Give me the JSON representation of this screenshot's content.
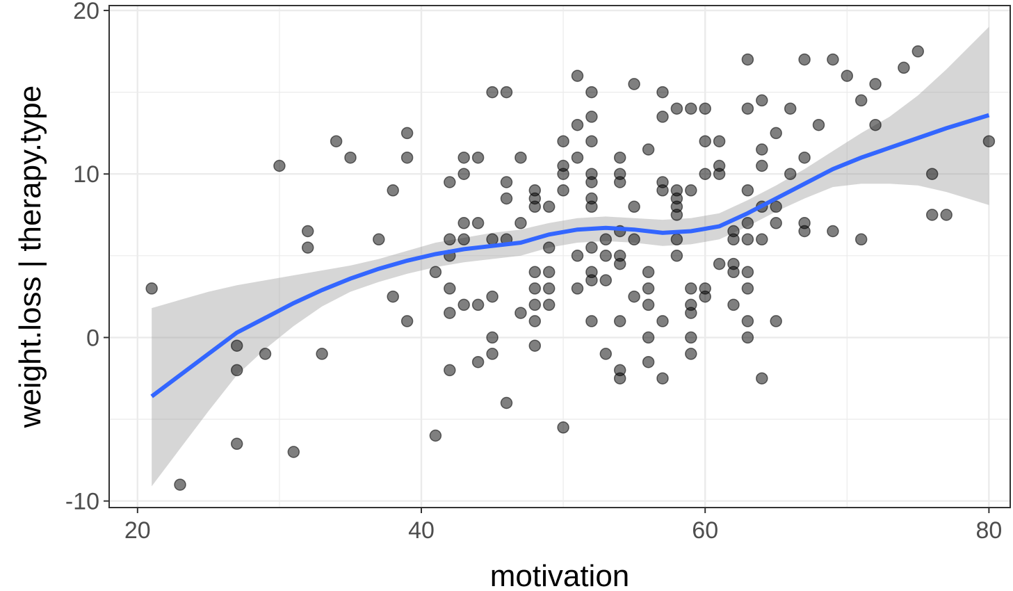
{
  "chart_data": {
    "type": "scatter",
    "xlabel": "motivation",
    "ylabel": "weight.loss | therapy.type",
    "xlim": [
      18,
      81.5
    ],
    "ylim": [
      -10.4,
      20.3
    ],
    "x_ticks": [
      20,
      40,
      60,
      80
    ],
    "x_tick_labels": [
      "20",
      "40",
      "60",
      "80"
    ],
    "y_ticks": [
      -10,
      0,
      10,
      20
    ],
    "y_tick_labels": [
      "-10",
      "0",
      "10",
      "20"
    ],
    "grid": true,
    "legend": "none",
    "colors": {
      "points": "#000000",
      "smooth_line": "#3366FF",
      "confidence_band": "#999999",
      "grid": "#ebebeb",
      "panel_border": "#333333"
    },
    "points": [
      [
        21,
        3
      ],
      [
        23,
        -9
      ],
      [
        27,
        -0.5
      ],
      [
        27,
        -2
      ],
      [
        27,
        -6.5
      ],
      [
        29,
        -1
      ],
      [
        30,
        10.5
      ],
      [
        31,
        -7
      ],
      [
        32,
        6.5
      ],
      [
        32,
        5.5
      ],
      [
        33,
        -1
      ],
      [
        34,
        12
      ],
      [
        35,
        11
      ],
      [
        37,
        6
      ],
      [
        38,
        9
      ],
      [
        38,
        2.5
      ],
      [
        39,
        12.5
      ],
      [
        39,
        11
      ],
      [
        39,
        1
      ],
      [
        41,
        4
      ],
      [
        41,
        -6
      ],
      [
        42,
        9.5
      ],
      [
        42,
        6
      ],
      [
        42,
        5
      ],
      [
        42,
        3
      ],
      [
        42,
        1.5
      ],
      [
        42,
        -2
      ],
      [
        43,
        11
      ],
      [
        43,
        10
      ],
      [
        43,
        7
      ],
      [
        43,
        6
      ],
      [
        43,
        2
      ],
      [
        44,
        11
      ],
      [
        44,
        7
      ],
      [
        44,
        2
      ],
      [
        44,
        -1.5
      ],
      [
        45,
        15
      ],
      [
        45,
        6
      ],
      [
        45,
        2.5
      ],
      [
        45,
        0
      ],
      [
        45,
        -1
      ],
      [
        46,
        15
      ],
      [
        46,
        9.5
      ],
      [
        46,
        8.5
      ],
      [
        46,
        6
      ],
      [
        46,
        -4
      ],
      [
        47,
        11
      ],
      [
        47,
        7
      ],
      [
        47,
        1.5
      ],
      [
        48,
        9
      ],
      [
        48,
        8.5
      ],
      [
        48,
        8
      ],
      [
        48,
        4
      ],
      [
        48,
        3
      ],
      [
        48,
        2
      ],
      [
        48,
        1
      ],
      [
        48,
        -0.5
      ],
      [
        49,
        8
      ],
      [
        49,
        5.5
      ],
      [
        49,
        4
      ],
      [
        49,
        3
      ],
      [
        49,
        2
      ],
      [
        50,
        12
      ],
      [
        50,
        10.5
      ],
      [
        50,
        10
      ],
      [
        50,
        9
      ],
      [
        50,
        -5.5
      ],
      [
        51,
        16
      ],
      [
        51,
        13
      ],
      [
        51,
        11
      ],
      [
        51,
        5
      ],
      [
        51,
        3
      ],
      [
        52,
        15
      ],
      [
        52,
        13.5
      ],
      [
        52,
        12
      ],
      [
        52,
        10
      ],
      [
        52,
        9.5
      ],
      [
        52,
        8.5
      ],
      [
        52,
        8
      ],
      [
        52,
        5.5
      ],
      [
        52,
        4
      ],
      [
        52,
        3.5
      ],
      [
        52,
        1
      ],
      [
        53,
        6
      ],
      [
        53,
        5
      ],
      [
        53,
        3.5
      ],
      [
        53,
        -1
      ],
      [
        54,
        11
      ],
      [
        54,
        10
      ],
      [
        54,
        9.5
      ],
      [
        54,
        6.5
      ],
      [
        54,
        5
      ],
      [
        54,
        4.5
      ],
      [
        54,
        1
      ],
      [
        54,
        -2
      ],
      [
        54,
        -2.5
      ],
      [
        55,
        15.5
      ],
      [
        55,
        8
      ],
      [
        55,
        6
      ],
      [
        55,
        2.5
      ],
      [
        56,
        11.5
      ],
      [
        56,
        4
      ],
      [
        56,
        3
      ],
      [
        56,
        2
      ],
      [
        56,
        0
      ],
      [
        56,
        -1.5
      ],
      [
        57,
        15
      ],
      [
        57,
        13.5
      ],
      [
        57,
        9.5
      ],
      [
        57,
        9
      ],
      [
        57,
        1
      ],
      [
        57,
        -2.5
      ],
      [
        58,
        14
      ],
      [
        58,
        9
      ],
      [
        58,
        8.5
      ],
      [
        58,
        8
      ],
      [
        58,
        7.5
      ],
      [
        58,
        6
      ],
      [
        58,
        5
      ],
      [
        59,
        14
      ],
      [
        59,
        9
      ],
      [
        59,
        3
      ],
      [
        59,
        2
      ],
      [
        59,
        1.5
      ],
      [
        59,
        0
      ],
      [
        59,
        -1
      ],
      [
        60,
        14
      ],
      [
        60,
        12
      ],
      [
        60,
        10
      ],
      [
        60,
        3
      ],
      [
        60,
        2.5
      ],
      [
        61,
        12
      ],
      [
        61,
        10.5
      ],
      [
        61,
        10
      ],
      [
        61,
        4.5
      ],
      [
        62,
        6.5
      ],
      [
        62,
        6
      ],
      [
        62,
        4.5
      ],
      [
        62,
        4
      ],
      [
        62,
        2
      ],
      [
        63,
        17
      ],
      [
        63,
        14
      ],
      [
        63,
        9
      ],
      [
        63,
        7
      ],
      [
        63,
        6
      ],
      [
        63,
        4
      ],
      [
        63,
        3
      ],
      [
        63,
        1
      ],
      [
        63,
        0
      ],
      [
        64,
        14.5
      ],
      [
        64,
        11.5
      ],
      [
        64,
        10.5
      ],
      [
        64,
        8
      ],
      [
        64,
        6
      ],
      [
        64,
        -2.5
      ],
      [
        65,
        12.5
      ],
      [
        65,
        8
      ],
      [
        65,
        7
      ],
      [
        65,
        1
      ],
      [
        66,
        14
      ],
      [
        66,
        10
      ],
      [
        67,
        17
      ],
      [
        67,
        11
      ],
      [
        67,
        7
      ],
      [
        67,
        6.5
      ],
      [
        68,
        13
      ],
      [
        69,
        17
      ],
      [
        69,
        6.5
      ],
      [
        70,
        16
      ],
      [
        71,
        14.5
      ],
      [
        71,
        6
      ],
      [
        72,
        15.5
      ],
      [
        72,
        13
      ],
      [
        74,
        16.5
      ],
      [
        75,
        17.5
      ],
      [
        76,
        10
      ],
      [
        76,
        7.5
      ],
      [
        77,
        7.5
      ],
      [
        80,
        12
      ]
    ],
    "smooth": {
      "x": [
        21,
        23,
        25,
        27,
        29,
        31,
        33,
        35,
        37,
        39,
        41,
        43,
        45,
        47,
        49,
        51,
        53,
        55,
        57,
        59,
        61,
        63,
        65,
        67,
        69,
        71,
        73,
        75,
        77,
        80
      ],
      "y": [
        -3.6,
        -2.3,
        -1.0,
        0.3,
        1.2,
        2.1,
        2.9,
        3.6,
        4.2,
        4.7,
        5.1,
        5.4,
        5.6,
        5.8,
        6.3,
        6.6,
        6.7,
        6.6,
        6.4,
        6.5,
        6.8,
        7.6,
        8.5,
        9.4,
        10.3,
        11.0,
        11.6,
        12.2,
        12.8,
        13.6
      ],
      "lower": [
        -9.1,
        -6.8,
        -4.5,
        -2.3,
        -0.7,
        0.7,
        1.9,
        2.8,
        3.4,
        3.9,
        4.3,
        4.6,
        4.8,
        5.0,
        5.5,
        5.8,
        5.9,
        5.8,
        5.6,
        5.7,
        6.0,
        6.8,
        7.7,
        8.5,
        9.2,
        9.4,
        9.4,
        9.3,
        8.9,
        8.1
      ],
      "upper": [
        1.8,
        2.3,
        2.8,
        3.2,
        3.5,
        3.8,
        4.1,
        4.4,
        4.8,
        5.3,
        5.8,
        6.1,
        6.4,
        6.6,
        7.0,
        7.3,
        7.4,
        7.3,
        7.2,
        7.3,
        7.6,
        8.4,
        9.3,
        10.3,
        11.4,
        12.5,
        13.5,
        14.8,
        16.4,
        19.0
      ]
    }
  }
}
